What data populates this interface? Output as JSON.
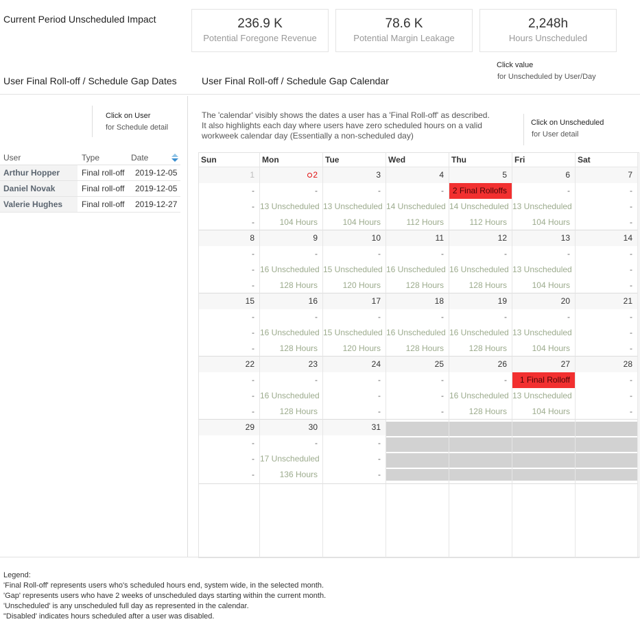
{
  "header": {
    "title": "Current Period Unscheduled Impact"
  },
  "kpis": [
    {
      "value": "236.9 K",
      "label": "Potential Foregone Revenue"
    },
    {
      "value": "78.6 K",
      "label": "Potential Margin Leakage"
    },
    {
      "value": "2,248h",
      "label": "Hours Unscheduled"
    }
  ],
  "kpi_hint": {
    "title": "Click value",
    "subtitle": "for Unscheduled by User/Day"
  },
  "left_panel": {
    "title": "User Final Roll-off / Schedule Gap Dates",
    "hint": {
      "title": "Click on User",
      "subtitle": "for Schedule detail"
    },
    "table": {
      "columns": [
        "User",
        "Type",
        "Date"
      ],
      "rows": [
        [
          "Arthur Hopper",
          "Final roll-off",
          "2019-12-05"
        ],
        [
          "Daniel Novak",
          "Final roll-off",
          "2019-12-05"
        ],
        [
          "Valerie Hughes",
          "Final roll-off",
          "2019-12-27"
        ]
      ]
    }
  },
  "calendar": {
    "title": "User Final Roll-off / Schedule Gap Calendar",
    "description": [
      "The 'calendar' visibly shows the dates a user has a 'Final Roll-off' as described.",
      "It also highlights each day where users have zero scheduled hours on a valid",
      "workweek calendar day (Essentially a non-scheduled day)"
    ],
    "hint": {
      "title": "Click on Unscheduled",
      "subtitle": "for User detail"
    },
    "weekdays": [
      "Sun",
      "Mon",
      "Tue",
      "Wed",
      "Thu",
      "Fri",
      "Sat"
    ],
    "weeks": [
      [
        {
          "day": "1",
          "muted": true,
          "rolloff": "-",
          "unscheduled": "-",
          "hours": "-"
        },
        {
          "day": "2",
          "marker": true,
          "rolloff": "-",
          "unscheduled": "13 Unscheduled",
          "hours": "104 Hours"
        },
        {
          "day": "3",
          "rolloff": "-",
          "unscheduled": "13 Unscheduled",
          "hours": "104 Hours"
        },
        {
          "day": "4",
          "rolloff": "-",
          "unscheduled": "14 Unscheduled",
          "hours": "112 Hours"
        },
        {
          "day": "5",
          "rolloff": "2 Final Rolloffs",
          "unscheduled": "14 Unscheduled",
          "hours": "112 Hours"
        },
        {
          "day": "6",
          "rolloff": "-",
          "unscheduled": "13 Unscheduled",
          "hours": "104 Hours"
        },
        {
          "day": "7",
          "rolloff": "-",
          "unscheduled": "-",
          "hours": "-"
        }
      ],
      [
        {
          "day": "8",
          "rolloff": "-",
          "unscheduled": "-",
          "hours": "-"
        },
        {
          "day": "9",
          "rolloff": "-",
          "unscheduled": "16 Unscheduled",
          "hours": "128 Hours"
        },
        {
          "day": "10",
          "rolloff": "-",
          "unscheduled": "15 Unscheduled",
          "hours": "120 Hours"
        },
        {
          "day": "11",
          "rolloff": "-",
          "unscheduled": "16 Unscheduled",
          "hours": "128 Hours"
        },
        {
          "day": "12",
          "rolloff": "-",
          "unscheduled": "16 Unscheduled",
          "hours": "128 Hours"
        },
        {
          "day": "13",
          "rolloff": "-",
          "unscheduled": "13 Unscheduled",
          "hours": "104 Hours"
        },
        {
          "day": "14",
          "rolloff": "-",
          "unscheduled": "-",
          "hours": "-"
        }
      ],
      [
        {
          "day": "15",
          "rolloff": "-",
          "unscheduled": "-",
          "hours": "-"
        },
        {
          "day": "16",
          "rolloff": "-",
          "unscheduled": "16 Unscheduled",
          "hours": "128 Hours"
        },
        {
          "day": "17",
          "rolloff": "-",
          "unscheduled": "15 Unscheduled",
          "hours": "120 Hours"
        },
        {
          "day": "18",
          "rolloff": "-",
          "unscheduled": "16 Unscheduled",
          "hours": "128 Hours"
        },
        {
          "day": "19",
          "rolloff": "-",
          "unscheduled": "16 Unscheduled",
          "hours": "128 Hours"
        },
        {
          "day": "20",
          "rolloff": "-",
          "unscheduled": "13 Unscheduled",
          "hours": "104 Hours"
        },
        {
          "day": "21",
          "rolloff": "-",
          "unscheduled": "-",
          "hours": "-"
        }
      ],
      [
        {
          "day": "22",
          "rolloff": "-",
          "unscheduled": "-",
          "hours": "-"
        },
        {
          "day": "23",
          "rolloff": "-",
          "unscheduled": "16 Unscheduled",
          "hours": "128 Hours"
        },
        {
          "day": "24",
          "rolloff": "-",
          "unscheduled": "-",
          "hours": "-"
        },
        {
          "day": "25",
          "rolloff": "-",
          "unscheduled": "-",
          "hours": "-"
        },
        {
          "day": "26",
          "rolloff": "-",
          "unscheduled": "16 Unscheduled",
          "hours": "128 Hours"
        },
        {
          "day": "27",
          "rolloff": "1 Final Rolloff",
          "unscheduled": "13 Unscheduled",
          "hours": "104 Hours"
        },
        {
          "day": "28",
          "rolloff": "-",
          "unscheduled": "-",
          "hours": "-"
        }
      ],
      [
        {
          "day": "29",
          "rolloff": "-",
          "unscheduled": "-",
          "hours": "-"
        },
        {
          "day": "30",
          "rolloff": "-",
          "unscheduled": "17 Unscheduled",
          "hours": "136 Hours"
        },
        {
          "day": "31",
          "rolloff": "-",
          "unscheduled": "-",
          "hours": "-"
        },
        null,
        null,
        null,
        null
      ]
    ]
  },
  "legend": [
    "Legend:",
    "'Final Roll-off' represents users who's scheduled hours end, system wide, in the selected month.",
    "'Gap' represents users who have 2 weeks of unscheduled days starting within the current month.",
    "'Unscheduled' is any unscheduled full day as represented in the calendar.",
    "\"Disabled' indicates hours scheduled after a user was disabled."
  ]
}
